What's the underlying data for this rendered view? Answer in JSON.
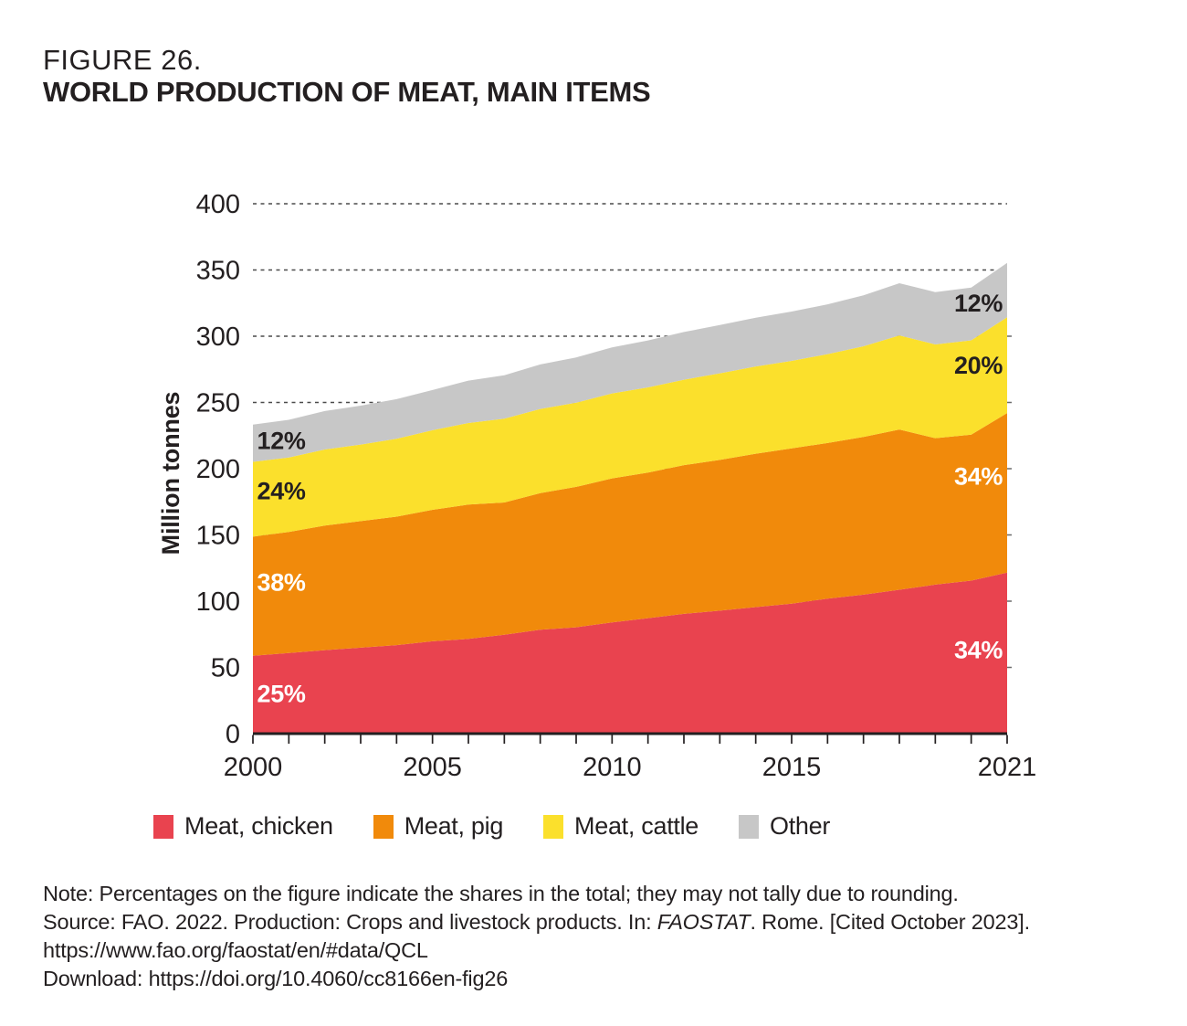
{
  "figure": {
    "label": "FIGURE 26.",
    "title": "WORLD PRODUCTION OF MEAT, MAIN ITEMS"
  },
  "chart_data": {
    "type": "area",
    "stacked": true,
    "title": "World production of meat, main items",
    "xlabel": "",
    "ylabel": "Million tonnes",
    "ylim": [
      0,
      400
    ],
    "xlim": [
      2000,
      2021
    ],
    "y_ticks": [
      0,
      50,
      100,
      150,
      200,
      250,
      300,
      350,
      400
    ],
    "x_tick_label_years": [
      2000,
      2005,
      2010,
      2015,
      2021
    ],
    "grid": "dashed horizontal",
    "legend_position": "bottom",
    "x": [
      2000,
      2001,
      2002,
      2003,
      2004,
      2005,
      2006,
      2007,
      2008,
      2009,
      2010,
      2011,
      2012,
      2013,
      2014,
      2015,
      2016,
      2017,
      2018,
      2019,
      2020,
      2021
    ],
    "series": [
      {
        "name": "Meat, chicken",
        "color": "#E9434F",
        "values": [
          58.8,
          60.8,
          63.0,
          64.9,
          66.8,
          69.7,
          71.5,
          74.7,
          78.4,
          80.3,
          84.0,
          87.2,
          90.4,
          92.8,
          95.5,
          98.1,
          101.9,
          104.9,
          108.6,
          112.5,
          115.5,
          121.6
        ]
      },
      {
        "name": "Meat, pig",
        "color": "#F18A0B",
        "values": [
          89.9,
          91.4,
          94.1,
          95.5,
          97.0,
          99.3,
          101.4,
          99.8,
          103.2,
          106.0,
          108.7,
          109.9,
          112.3,
          113.8,
          115.8,
          117.3,
          117.5,
          119.0,
          121.0,
          110.5,
          110.2,
          120.4
        ]
      },
      {
        "name": "Meat, cattle",
        "color": "#FBE02C",
        "values": [
          56.5,
          56.2,
          57.4,
          57.8,
          58.8,
          60.0,
          61.6,
          63.2,
          63.5,
          63.5,
          64.1,
          64.3,
          64.5,
          65.4,
          65.9,
          66.0,
          67.1,
          68.5,
          71.0,
          70.8,
          71.2,
          72.3
        ]
      },
      {
        "name": "Other",
        "color": "#C7C7C7",
        "values": [
          28.1,
          28.5,
          29.0,
          29.4,
          29.9,
          30.4,
          32.0,
          32.8,
          33.6,
          34.2,
          34.8,
          35.4,
          36.0,
          36.4,
          36.8,
          37.2,
          37.6,
          38.4,
          39.4,
          39.5,
          39.8,
          41.1
        ]
      }
    ],
    "annotations": [
      {
        "text": "25%",
        "x_year": 2000.79,
        "y_value": 30,
        "color": "#FFFFFF",
        "series": "Meat, chicken",
        "side": "left"
      },
      {
        "text": "38%",
        "x_year": 2000.79,
        "y_value": 114,
        "color": "#FFFFFF",
        "series": "Meat, pig",
        "side": "left"
      },
      {
        "text": "24%",
        "x_year": 2000.79,
        "y_value": 183,
        "color": "#231F20",
        "series": "Meat, cattle",
        "side": "left"
      },
      {
        "text": "12%",
        "x_year": 2000.79,
        "y_value": 221,
        "color": "#231F20",
        "series": "Other",
        "side": "left"
      },
      {
        "text": "34%",
        "x_year": 2020.2,
        "y_value": 63,
        "color": "#FFFFFF",
        "series": "Meat, chicken",
        "side": "right"
      },
      {
        "text": "34%",
        "x_year": 2020.2,
        "y_value": 194,
        "color": "#FFFFFF",
        "series": "Meat, pig",
        "side": "right"
      },
      {
        "text": "20%",
        "x_year": 2020.2,
        "y_value": 278,
        "color": "#231F20",
        "series": "Meat, cattle",
        "side": "right"
      },
      {
        "text": "12%",
        "x_year": 2020.2,
        "y_value": 325,
        "color": "#231F20",
        "series": "Other",
        "side": "right"
      }
    ]
  },
  "notes": {
    "note_line": "Note: Percentages on the figure indicate the shares in the total; they may not tally due to rounding.",
    "source_prefix": "Source: FAO. 2022. Production: Crops and livestock products. In: ",
    "source_italic": "FAOSTAT",
    "source_suffix": ". Rome. [Cited October 2023].",
    "url_line": "https://www.fao.org/faostat/en/#data/QCL",
    "download_line": "Download: https://doi.org/10.4060/cc8166en-fig26"
  }
}
